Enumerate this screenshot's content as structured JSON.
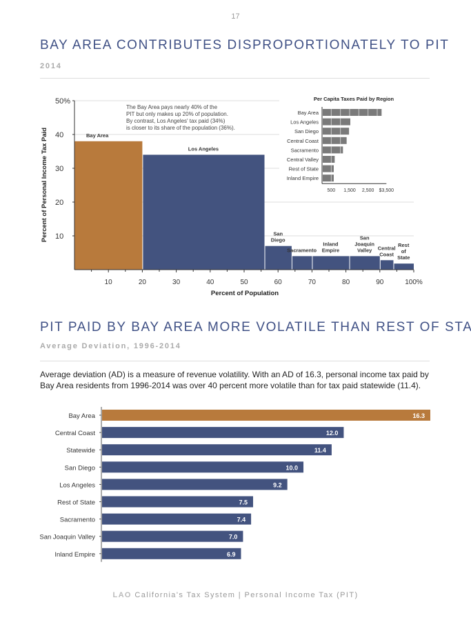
{
  "page_number": "17",
  "section1": {
    "title": "BAY AREA CONTRIBUTES DISPROPORTIONATELY TO PIT",
    "subtitle": "2014",
    "annotation": [
      "The Bay Area pays nearly 40% of the",
      "PIT but only makes up 20% of population.",
      "By contrast, Los Angeles' tax paid (34%)",
      "is closer to its share of the population (36%)."
    ]
  },
  "section2": {
    "title": "PIT PAID BY BAY AREA MORE VOLATILE THAN REST OF STATE",
    "subtitle": "Average Deviation, 1996-2014",
    "paragraph": "Average deviation (AD) is a measure of revenue volatility. With an AD of 16.3, personal income tax paid by Bay Area residents from 1996-2014 was over 40 percent more volatile than for tax paid statewide (11.4)."
  },
  "footer": {
    "brand": "LAO",
    "text": "California's Tax System | Personal Income Tax (PIT)"
  },
  "colors": {
    "highlight": "#b87a3c",
    "primary": "#43537f",
    "inset": "#7a7a7a"
  },
  "chart_data": [
    {
      "type": "bar",
      "subtype": "variable-width",
      "xlabel": "Percent of Population",
      "ylabel": "Percent of Personal Income Tax Paid",
      "xlim": [
        0,
        100
      ],
      "ylim": [
        0,
        50
      ],
      "xticks": [
        "10",
        "20",
        "30",
        "40",
        "50",
        "60",
        "70",
        "80",
        "90",
        "100%"
      ],
      "yticks": [
        "10",
        "20",
        "30",
        "40",
        "50%"
      ],
      "regions": [
        {
          "name": "Bay Area",
          "label": [
            "Bay Area"
          ],
          "x0": 0,
          "x1": 20,
          "value": 38
        },
        {
          "name": "Los Angeles",
          "label": [
            "Los Angeles"
          ],
          "x0": 20,
          "x1": 56,
          "value": 34
        },
        {
          "name": "San Diego",
          "label": [
            "San",
            "Diego"
          ],
          "x0": 56,
          "x1": 64,
          "value": 7
        },
        {
          "name": "Sacramento",
          "label": [
            "Sacramento"
          ],
          "x0": 64,
          "x1": 70,
          "value": 4
        },
        {
          "name": "Inland Empire",
          "label": [
            "Inland",
            "Empire"
          ],
          "x0": 70,
          "x1": 81,
          "value": 4
        },
        {
          "name": "San Joaquin Valley",
          "label": [
            "San",
            "Joaquin",
            "Valley"
          ],
          "x0": 81,
          "x1": 90,
          "value": 4
        },
        {
          "name": "Central Coast",
          "label": [
            "Central",
            "Coast"
          ],
          "x0": 90,
          "x1": 94,
          "value": 2.8
        },
        {
          "name": "Rest of State",
          "label": [
            "Rest",
            "of",
            "State"
          ],
          "x0": 94,
          "x1": 100,
          "value": 1.8
        }
      ]
    },
    {
      "type": "bar",
      "orientation": "horizontal",
      "title": "Per Capita Taxes Paid by Region",
      "xlim": [
        0,
        3500
      ],
      "xticks": [
        "500",
        "1,500",
        "2,500",
        "$3,500"
      ],
      "categories": [
        "Bay Area",
        "Los Angeles",
        "San Diego",
        "Central Coast",
        "Sacramento",
        "Central Valley",
        "Rest of State",
        "Inland Empire"
      ],
      "values": [
        3200,
        1500,
        1430,
        1300,
        1100,
        650,
        600,
        600
      ]
    },
    {
      "type": "bar",
      "orientation": "horizontal",
      "categories": [
        "Bay Area",
        "Central Coast",
        "Statewide",
        "San Diego",
        "Los Angeles",
        "Rest of State",
        "Sacramento",
        "San Joaquin Valley",
        "Inland Empire"
      ],
      "values": [
        16.3,
        12.0,
        11.4,
        10.0,
        9.2,
        7.5,
        7.4,
        7.0,
        6.9
      ],
      "labels": [
        "16.3",
        "12.0",
        "11.4",
        "10.0",
        "9.2",
        "7.5",
        "7.4",
        "7.0",
        "6.9"
      ]
    }
  ]
}
